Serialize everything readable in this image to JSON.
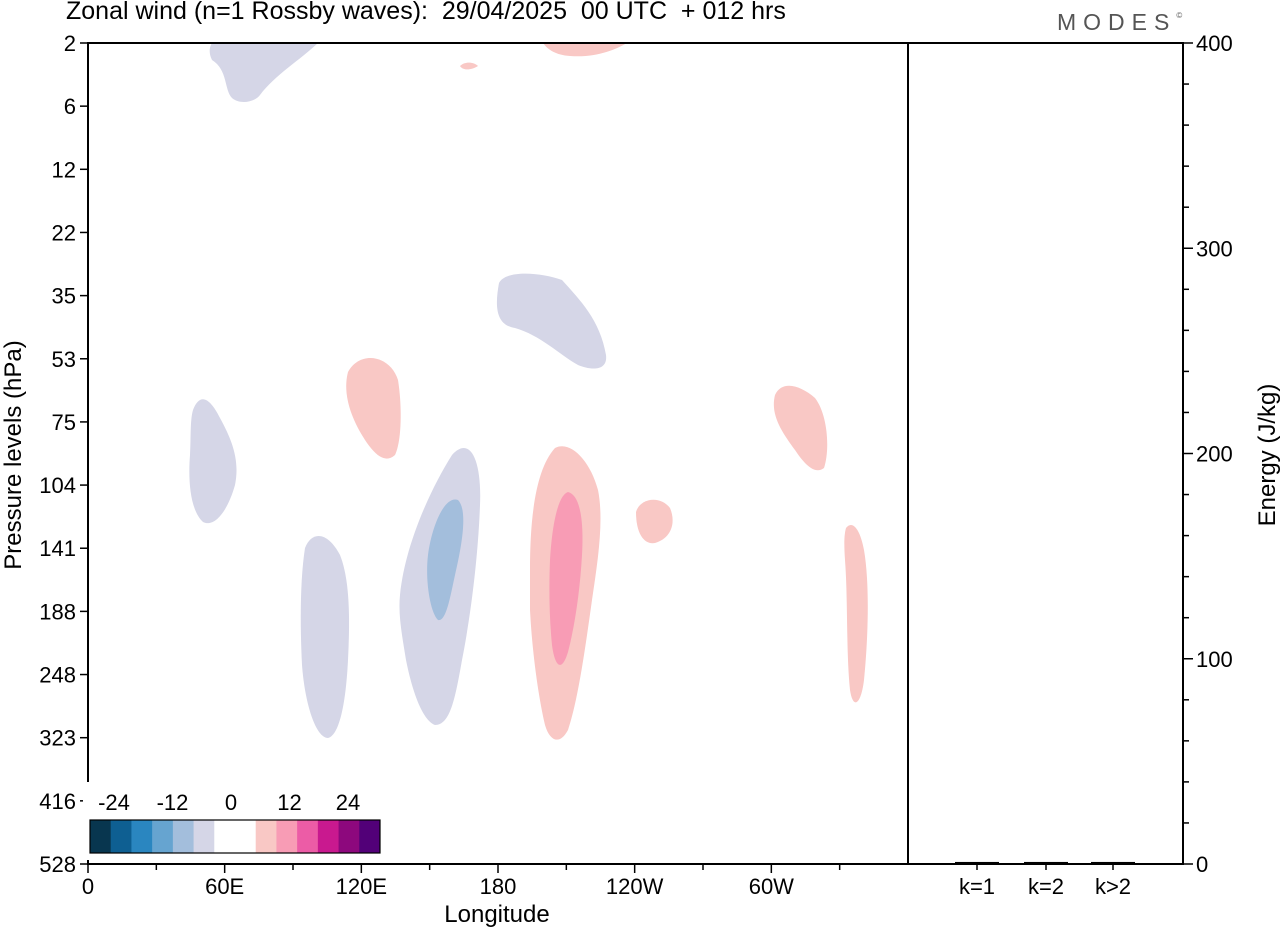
{
  "chart_data": {
    "type": "contour",
    "title": "Zonal wind (n=1 Rossby waves):  29/04/2025  00 UTC  + 012 hrs",
    "brand": "MODES",
    "brand_mark": "©",
    "xlabel": "Longitude",
    "ylabel": "Pressure levels (hPa)",
    "y2label": "Energy (J/kg)",
    "x_ticks": [
      "0",
      "60E",
      "120E",
      "180",
      "120W",
      "60W"
    ],
    "y_ticks": [
      "2",
      "6",
      "12",
      "22",
      "35",
      "53",
      "75",
      "104",
      "141",
      "188",
      "248",
      "323",
      "416",
      "528"
    ],
    "y2_ticks": [
      "0",
      "100",
      "200",
      "300",
      "400"
    ],
    "y2_range": [
      0,
      400
    ],
    "energy_categories": [
      "k=1",
      "k=2",
      "k>2"
    ],
    "energy_values": [
      1,
      1,
      1
    ],
    "colorbar": {
      "tick_labels": [
        "-24",
        "-12",
        "0",
        "12",
        "24"
      ],
      "colors": [
        "#08364f",
        "#0e5f92",
        "#2a86c0",
        "#66a4d0",
        "#a3bedc",
        "#d5d6e7",
        "#ffffff",
        "#ffffff",
        "#f9c8c5",
        "#f89cb5",
        "#ec5ca6",
        "#c9198f",
        "#8d087d",
        "#520078"
      ]
    },
    "contour_regions": [
      {
        "sign": "negative",
        "level": "weak",
        "color": "#d5d6e7",
        "lon": "35E-100E",
        "pressure_hPa": "2-6"
      },
      {
        "sign": "positive",
        "level": "weak",
        "color": "#f9c8c5",
        "lon": "165E-165E",
        "pressure_hPa": "2-3"
      },
      {
        "sign": "positive",
        "level": "weak",
        "color": "#f9c8c5",
        "lon": "165W-130W",
        "pressure_hPa": "2-3"
      },
      {
        "sign": "negative",
        "level": "weak",
        "color": "#d5d6e7",
        "lon": "175E-130W",
        "pressure_hPa": "30-55"
      },
      {
        "sign": "positive",
        "level": "weak",
        "color": "#f9c8c5",
        "lon": "115E-140E",
        "pressure_hPa": "53-95"
      },
      {
        "sign": "negative",
        "level": "weak",
        "color": "#d5d6e7",
        "lon": "45E-65E",
        "pressure_hPa": "80-125"
      },
      {
        "sign": "negative",
        "level": "weak",
        "color": "#d5d6e7",
        "lon": "90E-115E",
        "pressure_hPa": "130-330"
      },
      {
        "sign": "negative",
        "level": "weak",
        "color": "#d5d6e7",
        "lon": "135E-175E",
        "pressure_hPa": "90-300"
      },
      {
        "sign": "negative",
        "level": "moderate",
        "color": "#a3bedc",
        "lon": "150E-165E",
        "pressure_hPa": "115-180"
      },
      {
        "sign": "positive",
        "level": "weak",
        "color": "#f9c8c5",
        "lon": "165W-130W",
        "pressure_hPa": "90-330"
      },
      {
        "sign": "positive",
        "level": "moderate",
        "color": "#f89cb5",
        "lon": "155W-145W",
        "pressure_hPa": "115-235"
      },
      {
        "sign": "positive",
        "level": "weak",
        "color": "#f9c8c5",
        "lon": "115W-95W",
        "pressure_hPa": "115-140"
      },
      {
        "sign": "positive",
        "level": "weak",
        "color": "#f9c8c5",
        "lon": "60W-35W",
        "pressure_hPa": "65-100"
      },
      {
        "sign": "positive",
        "level": "weak",
        "color": "#f9c8c5",
        "lon": "35W-25W",
        "pressure_hPa": "125-290"
      }
    ]
  }
}
